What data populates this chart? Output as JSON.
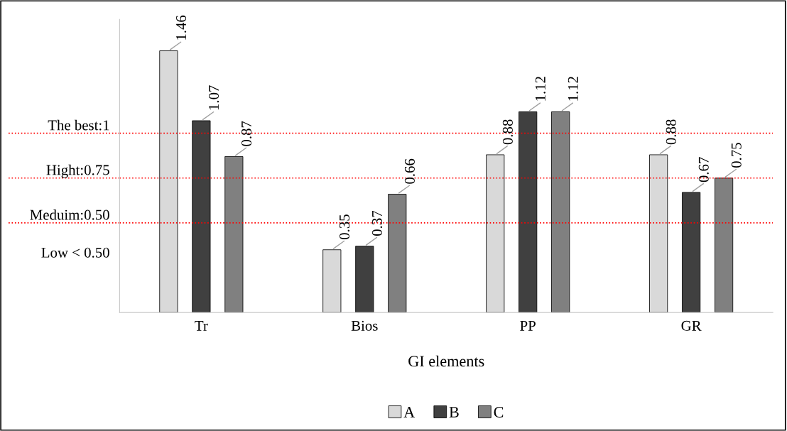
{
  "chart_data": {
    "type": "bar",
    "xlabel": "GI elements",
    "categories": [
      "Tr",
      "Bios",
      "PP",
      "GR"
    ],
    "series": [
      {
        "name": "A",
        "color": "#d9d9d9",
        "values": [
          1.46,
          0.35,
          0.88,
          0.88
        ]
      },
      {
        "name": "B",
        "color": "#404040",
        "values": [
          1.07,
          0.37,
          1.12,
          0.67
        ]
      },
      {
        "name": "C",
        "color": "#808080",
        "values": [
          0.87,
          0.66,
          1.12,
          0.75
        ]
      }
    ],
    "data_labels": true,
    "ref_lines": [
      {
        "axis": "y",
        "value": 1,
        "label": "The best:1",
        "color": "#ff0000",
        "line_style": "dotted"
      },
      {
        "axis": "y",
        "value": 0.75,
        "label": "Hight:0.75",
        "color": "#ff0000",
        "line_style": "dotted"
      },
      {
        "axis": "y",
        "value": 0.5,
        "label": "Meduim:0.50",
        "color": "#ff0000",
        "line_style": "dotted"
      }
    ],
    "annotations": [
      "Low < 0.50"
    ],
    "tick_labels": "x",
    "grid": false,
    "legend": "bottom"
  }
}
